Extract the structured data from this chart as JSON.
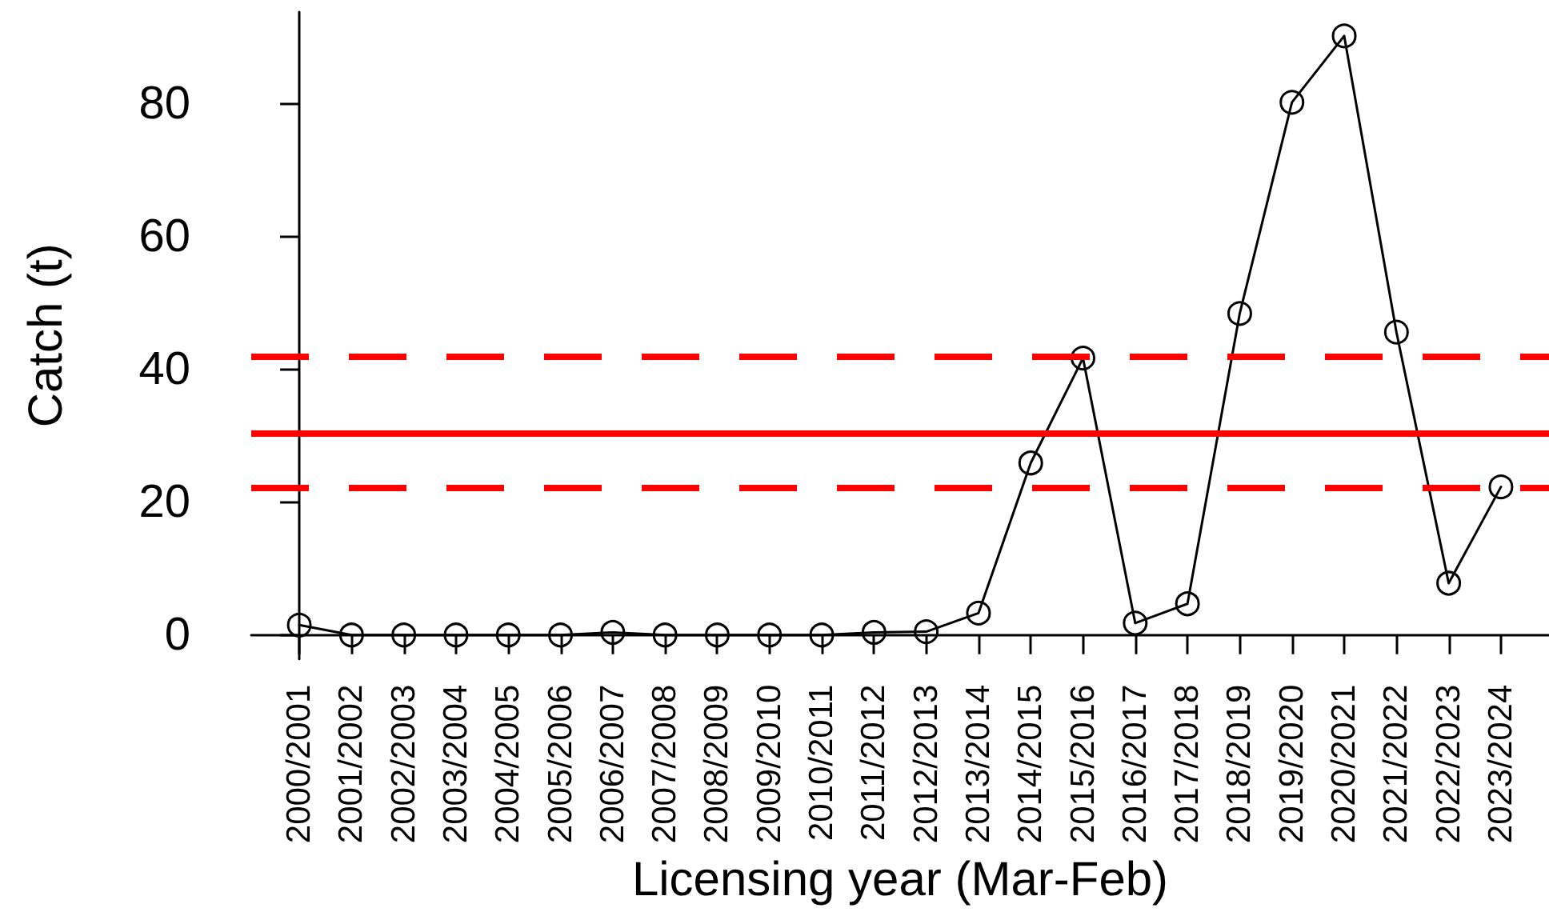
{
  "chart_data": {
    "type": "line",
    "xlabel": "Licensing year (Mar-Feb)",
    "ylabel": "Catch (t)",
    "categories": [
      "2000/2001",
      "2001/2002",
      "2002/2003",
      "2003/2004",
      "2004/2005",
      "2005/2006",
      "2006/2007",
      "2007/2008",
      "2008/2009",
      "2009/2010",
      "2010/2011",
      "2011/2012",
      "2012/2013",
      "2013/2014",
      "2014/2015",
      "2015/2016",
      "2016/2017",
      "2017/2018",
      "2018/2019",
      "2019/2020",
      "2020/2021",
      "2021/2022",
      "2022/2023",
      "2023/2024"
    ],
    "series": [
      {
        "color": "#000000",
        "values": [
          1.5,
          0,
          0,
          0,
          0,
          0,
          0.4,
          0,
          0,
          0,
          0,
          0.4,
          0.5,
          3.3,
          25.9,
          41.7,
          1.8,
          4.7,
          48.4,
          80.2,
          90.2,
          45.6,
          7.8,
          22.3
        ]
      }
    ],
    "ylim": [
      -3.6,
      93.8
    ],
    "yticks": [
      0,
      20,
      40,
      60,
      80
    ],
    "marker": "circle",
    "line_style": "solid",
    "ref_lines": [
      {
        "axis": "y",
        "value": 42.0,
        "color": "#ff0000",
        "line_style": "dashed"
      },
      {
        "axis": "y",
        "value": 30.5,
        "color": "#ff0000",
        "line_style": "solid"
      },
      {
        "axis": "y",
        "value": 22.2,
        "color": "#ff0000",
        "line_style": "dashed"
      }
    ]
  }
}
